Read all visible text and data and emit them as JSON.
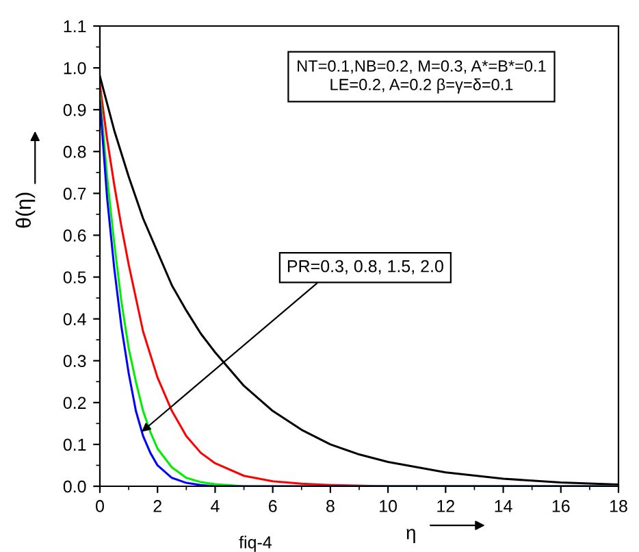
{
  "chart_data": {
    "type": "line",
    "xlabel": "η",
    "ylabel": "θ(η)",
    "xlim": [
      0,
      18
    ],
    "ylim": [
      0,
      1.1
    ],
    "xticks": [
      0,
      2,
      4,
      6,
      8,
      10,
      12,
      14,
      16,
      18
    ],
    "yticks": [
      {
        "value": 0,
        "label": "0.0"
      },
      0.1,
      0.2,
      0.3,
      0.4,
      0.5,
      0.6,
      0.7,
      0.8,
      0.9,
      {
        "value": 1,
        "label": "1.0"
      },
      1.1
    ],
    "grid": false,
    "line_style": "solid",
    "annotations": [
      "NT=0.1,NB=0.2, M=0.3, A*=B*=0.1\nLE=0.2, A=0.2 β=γ=δ=0.1",
      "fiq-4",
      {
        "text": "PR=0.3, 0.8, 1.5, 2.0",
        "x": 1.45,
        "y": 0.13
      }
    ],
    "series": [
      {
        "color": "#000000",
        "x": [
          0,
          0.5,
          1,
          1.5,
          2,
          2.5,
          3,
          3.5,
          4,
          5,
          6,
          7,
          8,
          9,
          10,
          12,
          14,
          16,
          18
        ],
        "values": [
          0.98,
          0.85,
          0.74,
          0.64,
          0.56,
          0.48,
          0.42,
          0.365,
          0.32,
          0.24,
          0.18,
          0.135,
          0.1,
          0.076,
          0.058,
          0.033,
          0.018,
          0.009,
          0.004
        ]
      },
      {
        "color": "#ff0000",
        "x": [
          0,
          0.25,
          0.5,
          0.75,
          1,
          1.5,
          2,
          2.5,
          3,
          3.5,
          4,
          5,
          6,
          7,
          8,
          10,
          18
        ],
        "values": [
          0.96,
          0.83,
          0.72,
          0.62,
          0.53,
          0.37,
          0.26,
          0.18,
          0.12,
          0.08,
          0.055,
          0.025,
          0.012,
          0.006,
          0.003,
          0,
          0
        ]
      },
      {
        "color": "#00ee00",
        "x": [
          0,
          0.25,
          0.5,
          0.75,
          1,
          1.25,
          1.5,
          1.75,
          2,
          2.5,
          3,
          3.5,
          4,
          5,
          18
        ],
        "values": [
          0.94,
          0.74,
          0.58,
          0.44,
          0.33,
          0.25,
          0.18,
          0.13,
          0.09,
          0.045,
          0.02,
          0.01,
          0.005,
          0,
          0
        ]
      },
      {
        "color": "#0000ff",
        "x": [
          0,
          0.25,
          0.5,
          0.75,
          1,
          1.25,
          1.5,
          1.75,
          2,
          2.5,
          3,
          3.5,
          4,
          18
        ],
        "values": [
          0.92,
          0.69,
          0.52,
          0.38,
          0.27,
          0.18,
          0.12,
          0.08,
          0.05,
          0.02,
          0.008,
          0.003,
          0,
          0
        ]
      }
    ]
  }
}
